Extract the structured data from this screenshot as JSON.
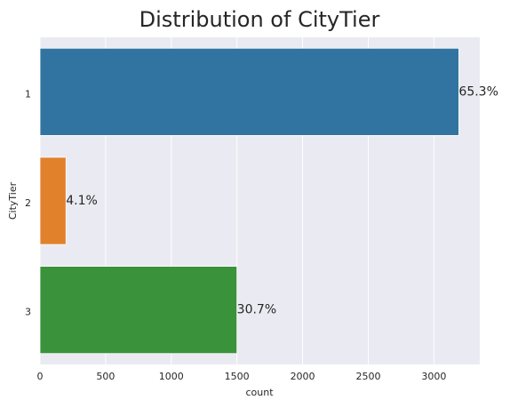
{
  "chart_data": {
    "type": "barh",
    "title": "Distribution of CityTier",
    "xlabel": "count",
    "ylabel": "CityTier",
    "categories": [
      "1",
      "2",
      "3"
    ],
    "values": [
      3190,
      198,
      1500
    ],
    "colors": [
      "#3274a1",
      "#e1812c",
      "#3a923a"
    ],
    "annotations": [
      "65.3%",
      "4.1%",
      "30.7%"
    ],
    "xlim": [
      0,
      3349.5
    ],
    "xticks": [
      0,
      500,
      1000,
      1500,
      2000,
      2500,
      3000
    ],
    "grid": true
  }
}
